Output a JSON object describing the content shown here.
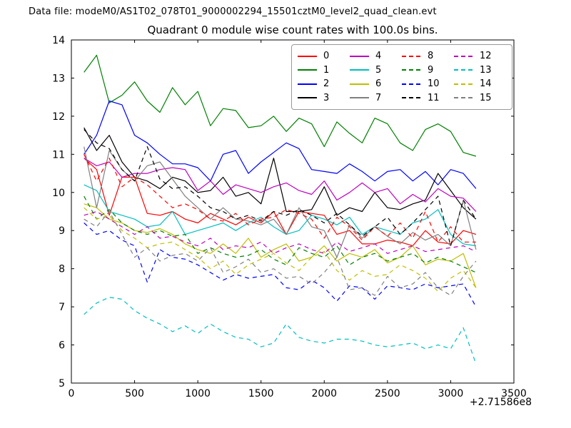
{
  "header": {
    "data_file_label": "Data file: modeM0/AS1T02_078T01_9000002294_15501cztM0_level2_quad_clean.evt"
  },
  "chart_data": {
    "type": "line",
    "title": "Quadrant 0 module wise count rates with 100.0s bins.",
    "xlabel": "",
    "ylabel": "",
    "xlim": [
      0,
      3500
    ],
    "ylim": [
      5,
      14
    ],
    "x_ticks": [
      0,
      500,
      1000,
      1500,
      2000,
      2500,
      3000,
      3500
    ],
    "y_ticks": [
      5,
      6,
      7,
      8,
      9,
      10,
      11,
      12,
      13,
      14
    ],
    "x_offset_label": "+2.71586e8",
    "grid": false,
    "legend_position": "upper center, 4 columns",
    "x": [
      100,
      200,
      300,
      400,
      500,
      600,
      700,
      800,
      900,
      1000,
      1100,
      1200,
      1300,
      1400,
      1500,
      1600,
      1700,
      1800,
      1900,
      2000,
      2100,
      2200,
      2300,
      2400,
      2500,
      2600,
      2700,
      2800,
      2900,
      3000,
      3100,
      3200
    ],
    "series": [
      {
        "name": "0",
        "color": "#ff0000",
        "style": "solid",
        "values": [
          10.9,
          10.6,
          9.4,
          10.4,
          10.4,
          9.45,
          9.4,
          9.5,
          9.3,
          9.2,
          9.45,
          9.3,
          9.15,
          9.35,
          9.2,
          9.5,
          8.9,
          9.5,
          9.45,
          9.4,
          8.9,
          9.0,
          8.65,
          8.65,
          8.75,
          8.7,
          8.6,
          9.0,
          8.7,
          8.65,
          9.0,
          8.9
        ]
      },
      {
        "name": "1",
        "color": "#008000",
        "style": "solid",
        "values": [
          13.15,
          13.6,
          12.35,
          12.55,
          12.9,
          12.4,
          12.1,
          12.75,
          12.3,
          12.65,
          11.75,
          12.2,
          12.15,
          11.7,
          11.75,
          12.0,
          11.6,
          11.95,
          11.8,
          11.2,
          11.85,
          11.55,
          11.3,
          11.95,
          11.8,
          11.3,
          11.1,
          11.65,
          11.8,
          11.6,
          11.05,
          10.95
        ]
      },
      {
        "name": "2",
        "color": "#0000ff",
        "style": "solid",
        "values": [
          11.0,
          11.5,
          12.4,
          12.3,
          11.5,
          11.3,
          11.0,
          10.75,
          10.75,
          10.65,
          10.3,
          11.0,
          11.1,
          10.5,
          10.8,
          11.05,
          11.3,
          11.15,
          10.6,
          10.55,
          10.5,
          10.75,
          10.55,
          10.3,
          10.55,
          10.6,
          10.3,
          10.55,
          10.2,
          10.6,
          10.5,
          10.1
        ]
      },
      {
        "name": "3",
        "color": "#000000",
        "style": "solid",
        "values": [
          11.7,
          11.1,
          11.5,
          10.8,
          10.4,
          10.3,
          10.1,
          10.4,
          10.3,
          10.0,
          10.05,
          10.4,
          9.9,
          10.0,
          9.7,
          10.9,
          9.5,
          9.5,
          9.55,
          10.15,
          9.4,
          9.6,
          9.5,
          10.0,
          9.6,
          9.55,
          9.7,
          9.8,
          10.5,
          10.05,
          9.6,
          9.3
        ]
      },
      {
        "name": "4",
        "color": "#bf00bf",
        "style": "solid",
        "values": [
          10.9,
          10.7,
          10.8,
          10.4,
          10.5,
          10.5,
          10.6,
          10.65,
          10.6,
          10.05,
          10.3,
          9.95,
          10.2,
          10.1,
          10.0,
          10.15,
          10.25,
          10.05,
          9.95,
          10.3,
          9.8,
          10.0,
          10.25,
          10.0,
          10.1,
          9.7,
          9.95,
          9.75,
          10.1,
          9.9,
          9.85,
          9.5
        ]
      },
      {
        "name": "5",
        "color": "#00bfbf",
        "style": "solid",
        "values": [
          10.2,
          10.05,
          9.5,
          9.4,
          9.3,
          9.1,
          9.15,
          9.5,
          8.9,
          9.0,
          9.1,
          9.2,
          9.0,
          9.2,
          9.35,
          9.1,
          8.9,
          9.0,
          9.4,
          9.3,
          9.15,
          9.35,
          8.9,
          9.1,
          9.0,
          8.9,
          9.2,
          9.3,
          9.55,
          8.9,
          8.65,
          8.6
        ]
      },
      {
        "name": "6",
        "color": "#bfbf00",
        "style": "solid",
        "values": [
          9.7,
          9.6,
          9.3,
          9.2,
          9.0,
          8.95,
          9.05,
          8.9,
          8.65,
          8.5,
          8.4,
          8.65,
          8.4,
          8.8,
          8.3,
          8.5,
          8.65,
          8.2,
          8.3,
          8.6,
          8.2,
          8.4,
          8.3,
          8.5,
          8.15,
          8.3,
          8.6,
          8.1,
          8.25,
          8.2,
          8.4,
          7.5
        ]
      },
      {
        "name": "7",
        "color": "#808080",
        "style": "solid",
        "values": [
          11.2,
          9.6,
          11.1,
          10.6,
          10.3,
          10.7,
          10.8,
          10.35,
          9.9,
          9.6,
          9.3,
          9.6,
          9.3,
          9.25,
          9.15,
          9.3,
          8.9,
          9.6,
          9.1,
          9.0,
          8.3,
          9.15,
          8.8,
          9.1,
          8.85,
          8.65,
          8.95,
          8.75,
          8.9,
          8.6,
          9.8,
          8.5
        ]
      },
      {
        "name": "8",
        "color": "#ff0000",
        "style": "dashed",
        "values": [
          11.0,
          10.3,
          10.9,
          10.15,
          10.4,
          10.2,
          9.9,
          9.6,
          9.7,
          9.55,
          9.3,
          9.25,
          9.45,
          9.15,
          9.3,
          9.35,
          9.55,
          9.45,
          9.3,
          8.8,
          9.35,
          9.1,
          8.75,
          9.1,
          8.85,
          9.2,
          8.8,
          9.5,
          8.7,
          9.1,
          8.7,
          8.7
        ]
      },
      {
        "name": "9",
        "color": "#008000",
        "style": "dashed",
        "values": [
          9.9,
          9.3,
          9.55,
          9.2,
          9.0,
          8.9,
          9.0,
          8.85,
          8.9,
          8.4,
          8.55,
          8.4,
          8.3,
          8.35,
          8.5,
          8.25,
          8.1,
          8.55,
          8.4,
          8.3,
          8.6,
          8.1,
          8.3,
          8.4,
          8.2,
          8.3,
          8.4,
          8.15,
          8.3,
          8.2,
          8.05,
          7.9
        ]
      },
      {
        "name": "10",
        "color": "#0000ff",
        "style": "dashed",
        "values": [
          9.2,
          8.9,
          9.0,
          8.75,
          8.6,
          7.65,
          8.5,
          8.3,
          8.25,
          8.1,
          7.9,
          7.7,
          7.85,
          7.75,
          7.8,
          7.85,
          7.5,
          7.45,
          7.7,
          7.5,
          7.15,
          7.55,
          7.5,
          7.2,
          7.55,
          7.5,
          7.45,
          7.6,
          7.5,
          7.55,
          7.6,
          7.0
        ]
      },
      {
        "name": "11",
        "color": "#000000",
        "style": "dashed",
        "values": [
          11.65,
          11.3,
          11.15,
          10.6,
          10.3,
          11.2,
          10.35,
          10.1,
          10.15,
          9.9,
          9.6,
          9.5,
          9.3,
          9.4,
          9.25,
          9.5,
          9.4,
          9.55,
          9.4,
          9.2,
          9.45,
          9.15,
          8.85,
          9.1,
          9.35,
          8.9,
          9.2,
          9.55,
          9.9,
          8.6,
          9.8,
          9.3
        ]
      },
      {
        "name": "12",
        "color": "#bf00bf",
        "style": "dashed",
        "values": [
          9.4,
          9.5,
          9.3,
          9.1,
          8.9,
          9.1,
          8.8,
          8.85,
          8.7,
          8.6,
          8.8,
          8.5,
          8.6,
          8.55,
          8.7,
          8.4,
          8.55,
          8.65,
          8.5,
          8.4,
          8.7,
          8.45,
          8.55,
          8.65,
          8.4,
          8.5,
          8.6,
          8.45,
          8.5,
          8.55,
          8.6,
          8.45
        ]
      },
      {
        "name": "13",
        "color": "#00bfbf",
        "style": "dashed",
        "values": [
          6.8,
          7.1,
          7.25,
          7.2,
          6.9,
          6.7,
          6.55,
          6.35,
          6.5,
          6.3,
          6.55,
          6.35,
          6.2,
          6.15,
          5.95,
          6.05,
          6.55,
          6.2,
          6.1,
          6.05,
          6.15,
          6.15,
          6.1,
          6.0,
          5.95,
          6.0,
          6.05,
          5.9,
          6.0,
          5.9,
          6.45,
          5.5
        ]
      },
      {
        "name": "14",
        "color": "#bfbf00",
        "style": "dashed",
        "values": [
          9.6,
          9.3,
          9.4,
          9.0,
          8.8,
          8.55,
          8.65,
          8.7,
          8.5,
          8.3,
          8.0,
          8.2,
          7.85,
          8.1,
          8.25,
          8.4,
          8.15,
          7.95,
          8.3,
          8.45,
          7.95,
          7.7,
          7.95,
          7.8,
          7.85,
          8.1,
          7.95,
          7.75,
          7.4,
          7.75,
          7.95,
          7.5
        ]
      },
      {
        "name": "15",
        "color": "#808080",
        "style": "dashed",
        "values": [
          9.3,
          9.1,
          9.5,
          8.9,
          8.3,
          8.55,
          8.2,
          8.35,
          8.4,
          8.2,
          8.55,
          7.9,
          8.05,
          8.25,
          7.9,
          8.0,
          7.75,
          7.8,
          7.6,
          7.9,
          8.3,
          7.45,
          7.5,
          7.3,
          7.8,
          7.5,
          7.6,
          7.9,
          7.5,
          7.3,
          7.8,
          8.2
        ]
      }
    ]
  }
}
